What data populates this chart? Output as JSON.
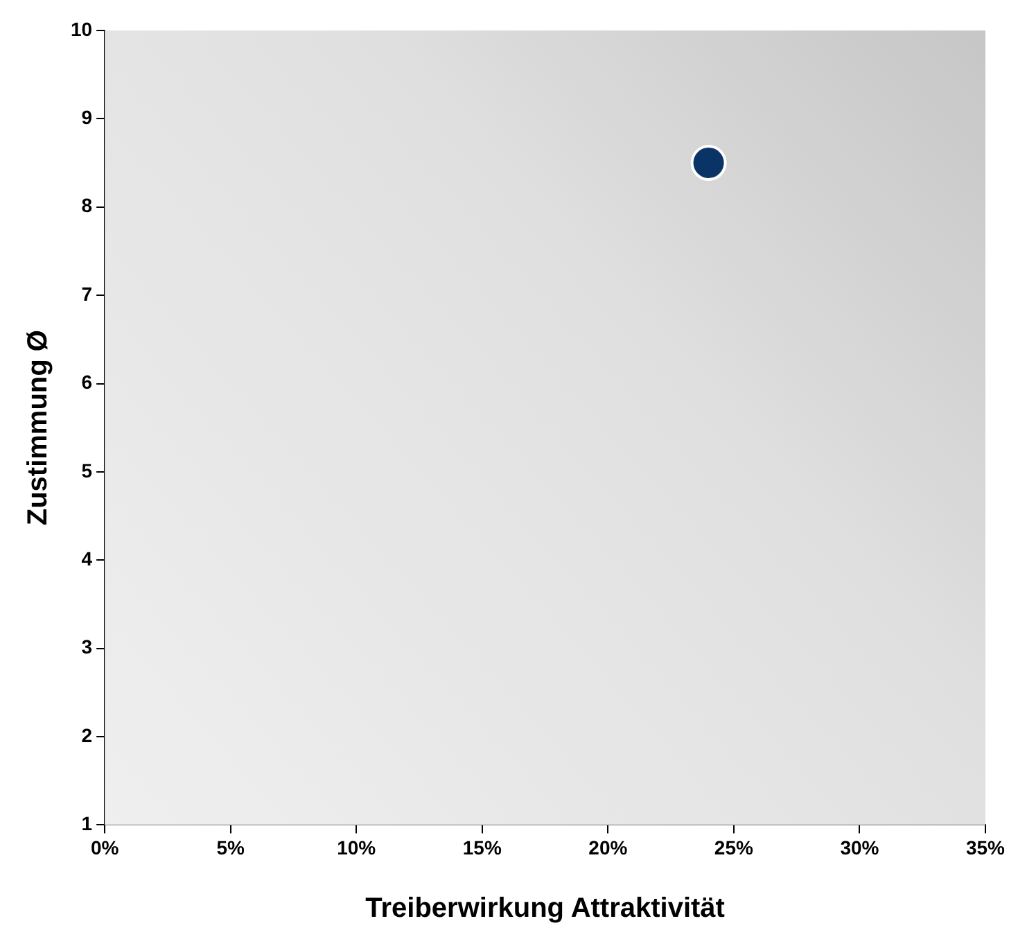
{
  "chart_data": {
    "type": "scatter",
    "xlabel": "Treiberwirkung Attraktivität",
    "ylabel": "Zustimmung Ø",
    "x": [
      24
    ],
    "series": [
      {
        "color": "#0b3466",
        "values": [
          8.5
        ]
      }
    ],
    "xlim": [
      0,
      35
    ],
    "xticks": [
      {
        "value": 0,
        "label": "0%"
      },
      {
        "value": 5,
        "label": "5%"
      },
      {
        "value": 10,
        "label": "10%"
      },
      {
        "value": 15,
        "label": "15%"
      },
      {
        "value": 20,
        "label": "20%"
      },
      {
        "value": 25,
        "label": "25%"
      },
      {
        "value": 30,
        "label": "30%"
      },
      {
        "value": 35,
        "label": "35%"
      }
    ],
    "ylim": [
      1,
      10
    ],
    "yticks": [
      1,
      2,
      3,
      4,
      5,
      6,
      7,
      8,
      9,
      10
    ],
    "grid": false,
    "legend": false,
    "marker": "circle"
  }
}
